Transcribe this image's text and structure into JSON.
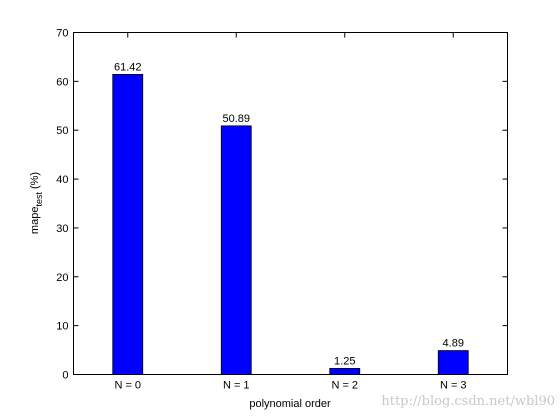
{
  "chart_data": {
    "type": "bar",
    "categories": [
      "N = 0",
      "N = 1",
      "N = 2",
      "N = 3"
    ],
    "values": [
      61.42,
      50.89,
      1.25,
      4.89
    ],
    "color": "#0000ff",
    "ylim": [
      0,
      70
    ],
    "yticks": [
      0,
      10,
      20,
      30,
      40,
      50,
      60,
      70
    ],
    "xlabel": "polynomial order",
    "ylabel": "mape",
    "ylabel_subscript": "test",
    "ylabel_suffix": "(%)",
    "watermark": "http://blog.csdn.net/wbl90",
    "grid": false
  }
}
